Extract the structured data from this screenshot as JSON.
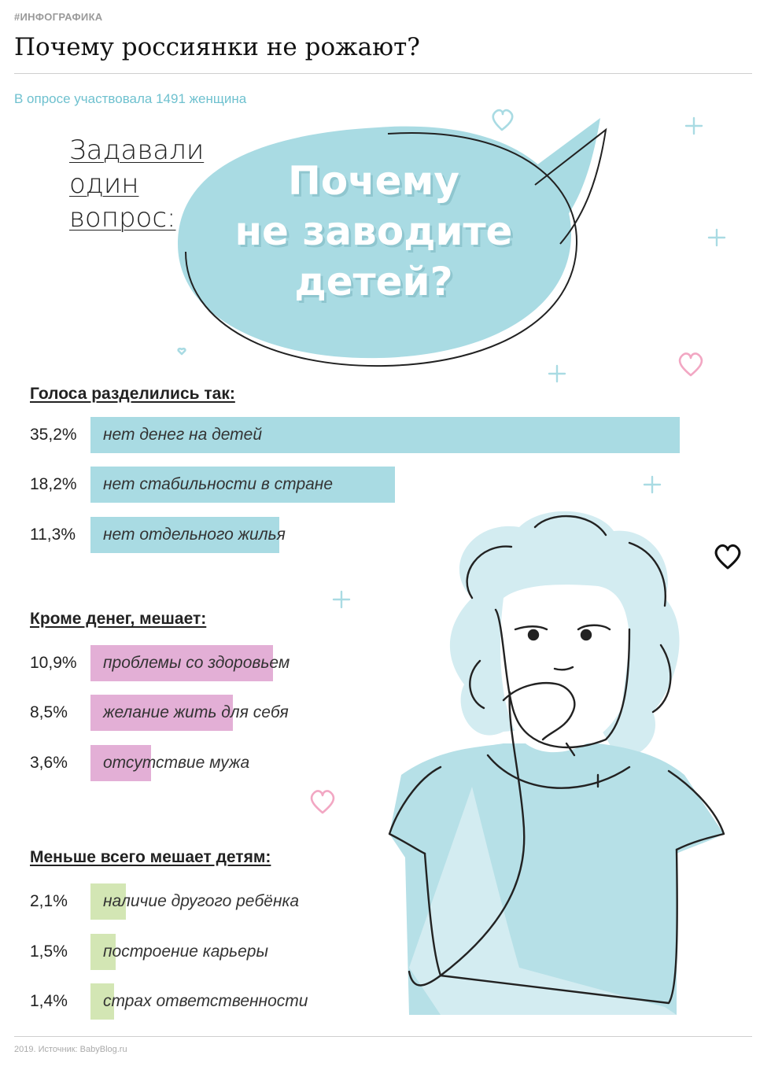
{
  "header": {
    "tag": "#ИНФОГРАФИКА",
    "title": "Почему россиянки не рожают?",
    "subtitle": "В опросе участвовала 1491 женщина"
  },
  "question": {
    "label_lines": [
      "Задавали",
      "один",
      "вопрос:"
    ],
    "bubble_lines": [
      "Почему",
      "не заводите",
      "детей?"
    ]
  },
  "colors": {
    "blue": "#a9dbe3",
    "pink": "#e3afd6",
    "green": "#d3e6b4",
    "accent_text": "#6fc1cf",
    "heart": "#f2a7c3"
  },
  "chart_data": {
    "type": "bar",
    "unit": "%",
    "sections": [
      {
        "heading": "Голоса разделились так:",
        "color": "#a9dbe3",
        "items": [
          {
            "label": "нет денег на детей",
            "value": 35.2,
            "display": "35,2%"
          },
          {
            "label": "нет стабильности в стране",
            "value": 18.2,
            "display": "18,2%"
          },
          {
            "label": "нет отдельного жилья",
            "value": 11.3,
            "display": "11,3%"
          }
        ]
      },
      {
        "heading": "Кроме денег, мешает:",
        "color": "#e3afd6",
        "items": [
          {
            "label": "проблемы со здоровьем",
            "value": 10.9,
            "display": "10,9%"
          },
          {
            "label": "желание жить для себя",
            "value": 8.5,
            "display": "8,5%"
          },
          {
            "label": "отсутствие мужа",
            "value": 3.6,
            "display": "3,6%"
          }
        ]
      },
      {
        "heading": "Меньше всего мешает детям:",
        "color": "#d3e6b4",
        "items": [
          {
            "label": "наличие другого ребёнка",
            "value": 2.1,
            "display": "2,1%"
          },
          {
            "label": "построение карьеры",
            "value": 1.5,
            "display": "1,5%"
          },
          {
            "label": "страх ответственности",
            "value": 1.4,
            "display": "1,4%"
          }
        ]
      }
    ]
  },
  "footer": {
    "source": "2019. Источник: BabyBlog.ru"
  }
}
